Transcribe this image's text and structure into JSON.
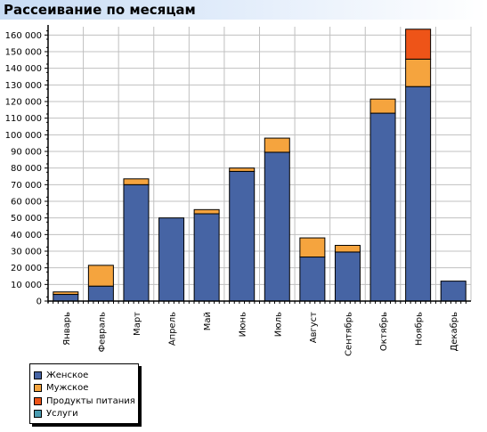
{
  "title": "Рассеивание по месяцам",
  "colors": {
    "female": "#4664a4",
    "male": "#f5a43e",
    "food": "#ee5418",
    "services": "#4a9bb0"
  },
  "chart_data": {
    "type": "bar",
    "stacked": true,
    "title": "Рассеивание по месяцам",
    "categories": [
      "Январь",
      "Февраль",
      "Март",
      "Апрель",
      "Май",
      "Июнь",
      "Июль",
      "Август",
      "Сентябрь",
      "Октябрь",
      "Ноябрь",
      "Декабрь"
    ],
    "series": [
      {
        "name": "Женское",
        "color": "#4664a4",
        "values": [
          4000,
          9000,
          70000,
          50000,
          52500,
          78000,
          89500,
          26500,
          29500,
          113000,
          129000,
          12000
        ]
      },
      {
        "name": "Мужское",
        "color": "#f5a43e",
        "values": [
          1500,
          12500,
          3500,
          0,
          2500,
          2000,
          8500,
          11500,
          4000,
          8500,
          16500,
          0
        ]
      },
      {
        "name": "Продукты питания",
        "color": "#ee5418",
        "values": [
          0,
          0,
          0,
          0,
          0,
          0,
          0,
          0,
          0,
          0,
          18000,
          0
        ]
      },
      {
        "name": "Услуги",
        "color": "#4a9bb0",
        "values": [
          0,
          0,
          0,
          0,
          0,
          0,
          0,
          0,
          0,
          0,
          0,
          0
        ]
      }
    ],
    "ylim": [
      0,
      165000
    ],
    "yticks": [
      0,
      10000,
      20000,
      30000,
      40000,
      50000,
      60000,
      70000,
      80000,
      90000,
      100000,
      110000,
      120000,
      130000,
      140000,
      150000,
      160000
    ],
    "ytick_labels": [
      "0",
      "10 000",
      "20 000",
      "30 000",
      "40 000",
      "50 000",
      "60 000",
      "70 000",
      "80 000",
      "90 000",
      "100 000",
      "110 000",
      "120 000",
      "130 000",
      "140 000",
      "150 000",
      "160 000"
    ],
    "grid": true,
    "legend_position": "bottom-left"
  }
}
